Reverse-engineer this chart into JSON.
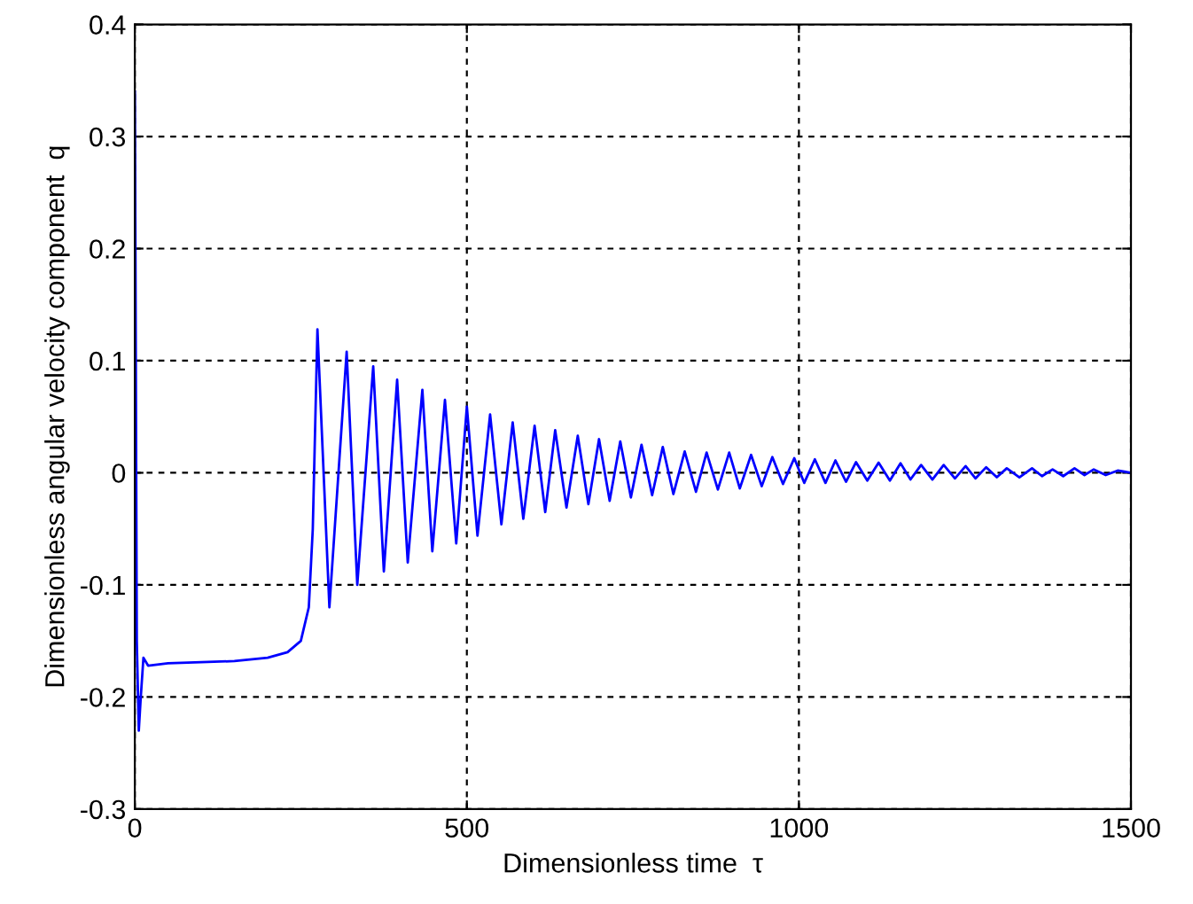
{
  "chart_data": {
    "type": "line",
    "xlabel": "Dimensionless time  τ",
    "ylabel": "Dimensionless angular velocity component  q",
    "xlim": [
      0,
      1500
    ],
    "ylim": [
      -0.3,
      0.4
    ],
    "xticks": [
      0,
      500,
      1000,
      1500
    ],
    "yticks": [
      -0.3,
      -0.2,
      -0.1,
      0,
      0.1,
      0.2,
      0.3,
      0.4
    ],
    "grid": true,
    "line_style": "solid",
    "series": [
      {
        "color": "#0000ff",
        "x": [
          0,
          1,
          3,
          6,
          9,
          13,
          20,
          50,
          100,
          150,
          200,
          230,
          250,
          262,
          268,
          275,
          293,
          319,
          335,
          359,
          375,
          395,
          411,
          433,
          448,
          467,
          484,
          500,
          516,
          535,
          552,
          569,
          585,
          602,
          618,
          633,
          650,
          667,
          683,
          699,
          715,
          731,
          747,
          763,
          779,
          795,
          811,
          828,
          845,
          861,
          878,
          895,
          911,
          928,
          944,
          960,
          976,
          993,
          1008,
          1024,
          1040,
          1055,
          1071,
          1086,
          1103,
          1120,
          1137,
          1153,
          1168,
          1184,
          1201,
          1218,
          1235,
          1251,
          1266,
          1282,
          1298,
          1313,
          1332,
          1351,
          1366,
          1382,
          1398,
          1415,
          1430,
          1444,
          1462,
          1480,
          1500
        ],
        "values": [
          0.34,
          0.19,
          -0.15,
          -0.23,
          -0.2,
          -0.165,
          -0.172,
          -0.17,
          -0.169,
          -0.168,
          -0.165,
          -0.16,
          -0.15,
          -0.12,
          -0.05,
          0.128,
          -0.12,
          0.108,
          -0.1,
          0.095,
          -0.088,
          0.083,
          -0.08,
          0.074,
          -0.07,
          0.065,
          -0.063,
          0.059,
          -0.056,
          0.052,
          -0.046,
          0.045,
          -0.041,
          0.042,
          -0.035,
          0.038,
          -0.031,
          0.033,
          -0.028,
          0.03,
          -0.025,
          0.028,
          -0.022,
          0.025,
          -0.02,
          0.023,
          -0.019,
          0.019,
          -0.017,
          0.018,
          -0.015,
          0.018,
          -0.014,
          0.016,
          -0.012,
          0.014,
          -0.01,
          0.013,
          -0.009,
          0.012,
          -0.009,
          0.011,
          -0.008,
          0.0095,
          -0.007,
          0.009,
          -0.007,
          0.0085,
          -0.006,
          0.007,
          -0.006,
          0.007,
          -0.005,
          0.006,
          -0.005,
          0.005,
          -0.004,
          0.004,
          -0.004,
          0.004,
          -0.003,
          0.003,
          -0.003,
          0.004,
          -0.002,
          0.003,
          -0.002,
          0.002,
          0
        ]
      }
    ]
  }
}
